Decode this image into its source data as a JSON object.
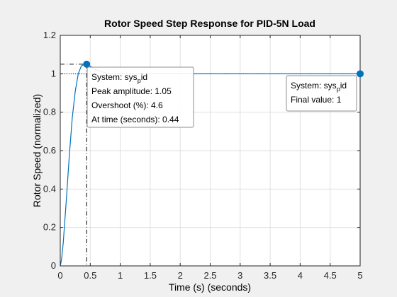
{
  "chart_data": {
    "type": "line",
    "title": "Rotor Speed Step Response for PID-5N Load",
    "xlabel": "Time (s) (seconds)",
    "ylabel": "Rotor Speed (normalized)",
    "xlim": [
      0,
      5
    ],
    "ylim": [
      0,
      1.2
    ],
    "x_ticks": [
      "0",
      "0.5",
      "1",
      "1.5",
      "2",
      "2.5",
      "3",
      "3.5",
      "4",
      "4.5",
      "5"
    ],
    "y_ticks": [
      "0",
      "0.2",
      "0.4",
      "0.6",
      "0.8",
      "1",
      "1.2"
    ],
    "grid": true,
    "series": [
      {
        "color": "#0072bd",
        "x": [
          0,
          0.02,
          0.05,
          0.1,
          0.15,
          0.2,
          0.25,
          0.3,
          0.35,
          0.4,
          0.44,
          0.5,
          0.6,
          0.7,
          0.8,
          1.0,
          1.5,
          2,
          3,
          4,
          5
        ],
        "y": [
          0,
          0.03,
          0.12,
          0.34,
          0.57,
          0.77,
          0.91,
          1.0,
          1.04,
          1.05,
          1.05,
          1.04,
          1.02,
          1.01,
          1.0,
          1.0,
          1.0,
          1.0,
          1.0,
          1.0,
          1.0
        ]
      }
    ],
    "markers": [
      {
        "name": "peak",
        "x": 0.44,
        "y": 1.05
      },
      {
        "name": "final",
        "x": 5,
        "y": 1.0
      }
    ],
    "datatips": [
      {
        "system_prefix": "System: sys",
        "system_sub": "p",
        "system_suffix": "id",
        "lines": [
          "Peak amplitude: 1.05",
          "Overshoot (%): 4.6",
          "At time (seconds): 0.44"
        ]
      },
      {
        "system_prefix": "System: sys",
        "system_sub": "p",
        "system_suffix": "id",
        "lines": [
          "Final value: 1"
        ]
      }
    ]
  }
}
